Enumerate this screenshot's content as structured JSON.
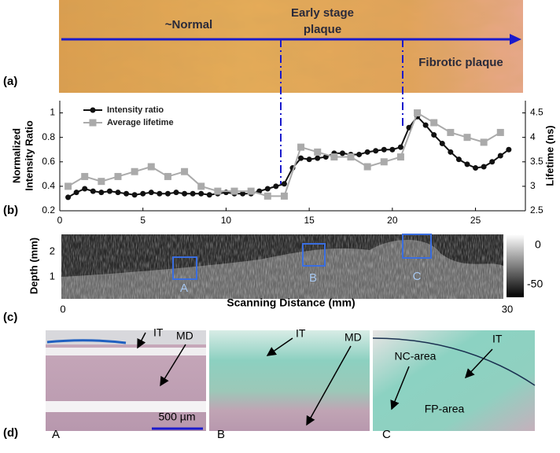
{
  "panel_labels": [
    "(a)",
    "(b)",
    "(c)",
    "(d)"
  ],
  "photo": {
    "normal": "~Normal",
    "early": [
      "Early stage",
      "plaque"
    ],
    "fibrotic": "Fibrotic plaque"
  },
  "chart_data": {
    "type": "line",
    "ylabel": [
      "Normalized",
      "Intensity Ratio"
    ],
    "y2label": "Lifetime (ns)",
    "xlim": [
      0,
      28
    ],
    "xticks": [
      0,
      5,
      10,
      15,
      20,
      25
    ],
    "ylim": [
      0.2,
      1.1
    ],
    "yticks": [
      0.2,
      0.4,
      0.6,
      0.8,
      1
    ],
    "y2lim": [
      2.5,
      4.75
    ],
    "y2ticks": [
      2.5,
      3,
      3.5,
      4,
      4.5
    ],
    "legend": "upper left",
    "series": [
      {
        "name": "Intensity ratio",
        "color": "#111111",
        "marker": "circle",
        "x": [
          0.5,
          1,
          1.5,
          2,
          2.5,
          3,
          3.5,
          4,
          4.5,
          5,
          5.5,
          6,
          6.5,
          7,
          7.5,
          8,
          8.5,
          9,
          9.5,
          10,
          10.5,
          11,
          11.5,
          12,
          12.5,
          13,
          13.5,
          14,
          14.5,
          15,
          15.5,
          16,
          16.5,
          17,
          17.5,
          18,
          18.5,
          19,
          19.5,
          20,
          20.5,
          21,
          21.5,
          22,
          22.5,
          23,
          23.5,
          24,
          24.5,
          25,
          25.5,
          26,
          26.5,
          27
        ],
        "values": [
          0.31,
          0.35,
          0.38,
          0.36,
          0.35,
          0.36,
          0.35,
          0.34,
          0.33,
          0.34,
          0.35,
          0.34,
          0.34,
          0.35,
          0.34,
          0.34,
          0.34,
          0.33,
          0.34,
          0.35,
          0.34,
          0.34,
          0.34,
          0.36,
          0.38,
          0.4,
          0.42,
          0.55,
          0.63,
          0.62,
          0.63,
          0.64,
          0.67,
          0.67,
          0.66,
          0.66,
          0.68,
          0.69,
          0.7,
          0.7,
          0.72,
          0.88,
          0.97,
          0.9,
          0.82,
          0.75,
          0.68,
          0.62,
          0.58,
          0.55,
          0.56,
          0.6,
          0.65,
          0.7
        ]
      },
      {
        "name": "Average lifetime",
        "color": "#aaaaaa",
        "marker": "square",
        "axis": "y2",
        "x": [
          0.5,
          1.5,
          2.5,
          3.5,
          4.5,
          5.5,
          6.5,
          7.5,
          8.5,
          9.5,
          10.5,
          11.5,
          12.5,
          13.5,
          14.5,
          15.5,
          16.5,
          17.5,
          18.5,
          19.5,
          20.5,
          21.5,
          22.5,
          23.5,
          24.5,
          25.5,
          26.5
        ],
        "values": [
          3.0,
          3.2,
          3.1,
          3.2,
          3.3,
          3.4,
          3.2,
          3.3,
          3.0,
          2.9,
          2.9,
          2.9,
          2.8,
          2.8,
          3.8,
          3.7,
          3.6,
          3.6,
          3.4,
          3.5,
          3.6,
          4.5,
          4.3,
          4.1,
          4.0,
          3.9,
          4.1
        ]
      }
    ]
  },
  "oct": {
    "ylabel": "Depth (mm)",
    "yticks": [
      2,
      1
    ],
    "xlabel": "Scanning Distance (mm)",
    "xticks": [
      0,
      30
    ],
    "colorbar_ticks": [
      0,
      -50
    ],
    "boxes": [
      "A",
      "B",
      "C"
    ]
  },
  "histology": [
    {
      "letter": "A",
      "it": "IT",
      "md": "MD",
      "scale": "500 µm"
    },
    {
      "letter": "B",
      "it": "IT",
      "md": "MD"
    },
    {
      "letter": "C",
      "nc": "NC-area",
      "it": "IT",
      "fp": "FP-area"
    }
  ]
}
